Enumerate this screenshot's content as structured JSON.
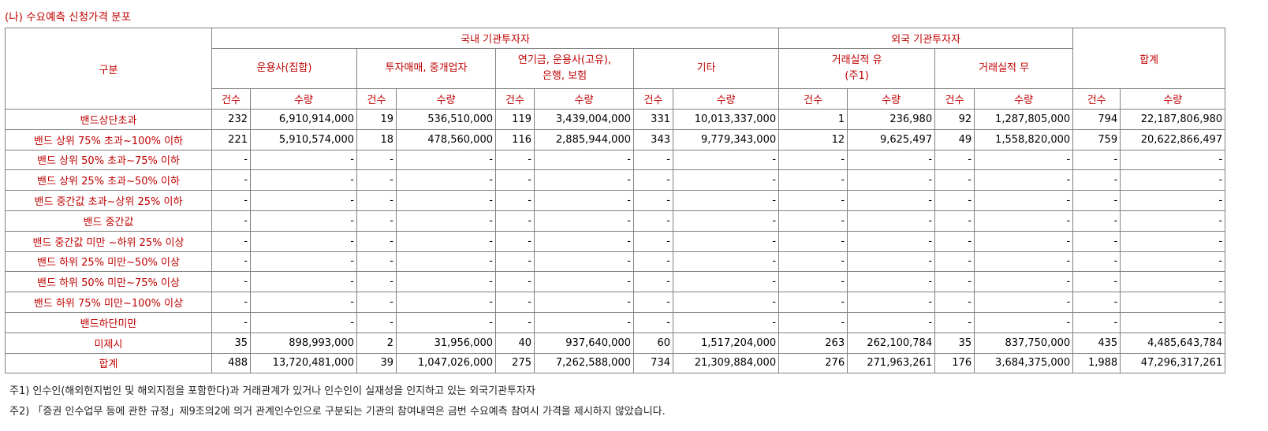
{
  "title": "(나) 수요예측 신청가격 분포",
  "table": {
    "header": {
      "category": "구분",
      "groups": [
        "국내 기관투자자",
        "외국 기관투자자",
        "합계"
      ],
      "subgroups": [
        "운용사(집합)",
        "투자매매, 중개업자",
        "연기금, 운용사(고유),\n은행, 보험",
        "기타",
        "거래실적 유\n(주1)",
        "거래실적 무"
      ],
      "columns": [
        "건수",
        "수량",
        "건수",
        "수량",
        "건수",
        "수량",
        "건수",
        "수량",
        "건수",
        "수량",
        "건수",
        "수량",
        "건수",
        "수량"
      ]
    },
    "rows": [
      {
        "label": "밴드상단초과",
        "cells": [
          "232",
          "6,910,914,000",
          "19",
          "536,510,000",
          "119",
          "3,439,004,000",
          "331",
          "10,013,337,000",
          "1",
          "236,980",
          "92",
          "1,287,805,000",
          "794",
          "22,187,806,980"
        ]
      },
      {
        "label": "밴드 상위 75% 초과~100% 이하",
        "cells": [
          "221",
          "5,910,574,000",
          "18",
          "478,560,000",
          "116",
          "2,885,944,000",
          "343",
          "9,779,343,000",
          "12",
          "9,625,497",
          "49",
          "1,558,820,000",
          "759",
          "20,622,866,497"
        ]
      },
      {
        "label": "밴드 상위 50% 초과~75% 이하",
        "cells": [
          "-",
          "-",
          "-",
          "-",
          "-",
          "-",
          "-",
          "-",
          "-",
          "-",
          "-",
          "-",
          "-",
          "-"
        ]
      },
      {
        "label": "밴드 상위 25% 초과~50% 이하",
        "cells": [
          "-",
          "-",
          "-",
          "-",
          "-",
          "-",
          "-",
          "-",
          "-",
          "-",
          "-",
          "-",
          "-",
          "-"
        ]
      },
      {
        "label": "밴드 중간값 초과~상위 25% 이하",
        "cells": [
          "-",
          "-",
          "-",
          "-",
          "-",
          "-",
          "-",
          "-",
          "-",
          "-",
          "-",
          "-",
          "-",
          "-"
        ]
      },
      {
        "label": "밴드 중간값",
        "cells": [
          "-",
          "-",
          "-",
          "-",
          "-",
          "-",
          "-",
          "-",
          "-",
          "-",
          "-",
          "-",
          "-",
          "-"
        ]
      },
      {
        "label": "밴드 중간값 미만 ~하위 25% 이상",
        "cells": [
          "-",
          "-",
          "-",
          "-",
          "-",
          "-",
          "-",
          "-",
          "-",
          "-",
          "-",
          "-",
          "-",
          "-"
        ]
      },
      {
        "label": "밴드 하위 25% 미만~50% 이상",
        "cells": [
          "-",
          "-",
          "-",
          "-",
          "-",
          "-",
          "-",
          "-",
          "-",
          "-",
          "-",
          "-",
          "-",
          "-"
        ]
      },
      {
        "label": "밴드 하위 50% 미만~75% 이상",
        "cells": [
          "-",
          "-",
          "-",
          "-",
          "-",
          "-",
          "-",
          "-",
          "-",
          "-",
          "-",
          "-",
          "-",
          "-"
        ]
      },
      {
        "label": "밴드 하위 75% 미만~100% 이상",
        "cells": [
          "-",
          "-",
          "-",
          "-",
          "-",
          "-",
          "-",
          "-",
          "-",
          "-",
          "-",
          "-",
          "-",
          "-"
        ]
      },
      {
        "label": "밴드하단미만",
        "cells": [
          "-",
          "-",
          "-",
          "-",
          "-",
          "-",
          "-",
          "-",
          "-",
          "-",
          "-",
          "-",
          "-",
          "-"
        ]
      },
      {
        "label": "미제시",
        "cells": [
          "35",
          "898,993,000",
          "2",
          "31,956,000",
          "40",
          "937,640,000",
          "60",
          "1,517,204,000",
          "263",
          "262,100,784",
          "35",
          "837,750,000",
          "435",
          "4,485,643,784"
        ]
      },
      {
        "label": "합계",
        "cells": [
          "488",
          "13,720,481,000",
          "39",
          "1,047,026,000",
          "275",
          "7,262,588,000",
          "734",
          "21,309,884,000",
          "276",
          "271,963,261",
          "176",
          "3,684,375,000",
          "1,988",
          "47,296,317,261"
        ]
      }
    ]
  },
  "notes": [
    "주1) 인수인(해외현지법인 및 해외지점을 포함한다)과 거래관계가 있거나 인수인이 실재성을 인지하고 있는 외국기관투자자",
    "주2) 「증권 인수업무 등에 관한 규정」제9조의2에 의거 관계인수인으로 구분되는 기관의 참여내역은 금번 수요예측 참여시 가격을 제시하지 않았습니다."
  ]
}
